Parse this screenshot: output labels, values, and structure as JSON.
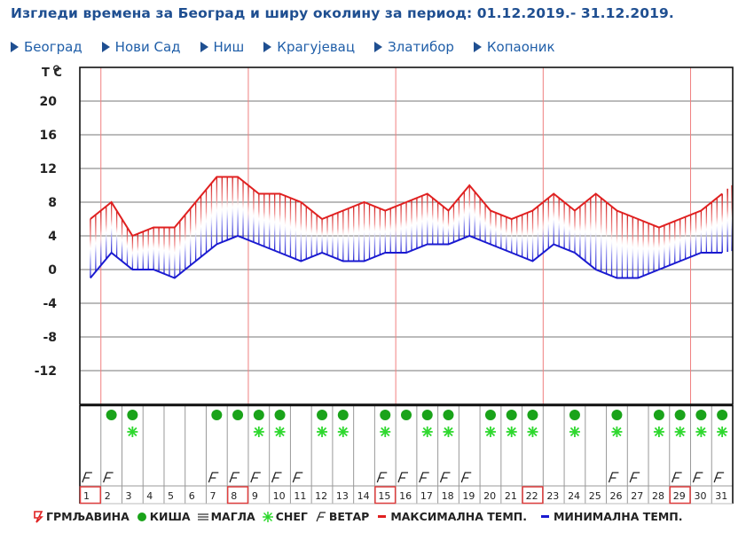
{
  "header": {
    "title": "Изгледи времена за Београд и ширу околину за период: 01.12.2019.- 31.12.2019."
  },
  "nav": {
    "items": [
      {
        "label": "Београд"
      },
      {
        "label": "Нови Сад"
      },
      {
        "label": "Ниш"
      },
      {
        "label": "Крагујевац"
      },
      {
        "label": "Златибор"
      },
      {
        "label": "Копаоник"
      }
    ]
  },
  "legend": {
    "thunder": "ГРМЉАВИНА",
    "rain": "КИША",
    "fog": "МАГЛА",
    "snow": "СНЕГ",
    "wind": "ВЕТАР",
    "max_temp": "МАКСИМАЛНА ТЕМП.",
    "min_temp": "МИНИМАЛНА ТЕМП."
  },
  "colors": {
    "max": "#e02020",
    "min": "#1a1ad0",
    "rain": "#1aa31a",
    "snow": "#2fd82f",
    "week_line": "#f08080",
    "title": "#1f4f91"
  },
  "chart_data": {
    "type": "area",
    "title": "Изгледи времена за Београд и ширу околину за период: 01.12.2019.- 31.12.2019.",
    "ylabel": "T °C",
    "xlabel": "",
    "ylim": [
      -16,
      24
    ],
    "yticks": [
      20,
      16,
      12,
      8,
      4,
      0,
      -4,
      -8,
      -12
    ],
    "grid": true,
    "x": [
      1,
      2,
      3,
      4,
      5,
      6,
      7,
      8,
      9,
      10,
      11,
      12,
      13,
      14,
      15,
      16,
      17,
      18,
      19,
      20,
      21,
      22,
      23,
      24,
      25,
      26,
      27,
      28,
      29,
      30,
      31
    ],
    "series": [
      {
        "name": "МАКСИМАЛНА ТЕМП.",
        "values": [
          6,
          8,
          4,
          5,
          5,
          8,
          11,
          11,
          9,
          9,
          8,
          6,
          7,
          8,
          7,
          8,
          9,
          7,
          10,
          7,
          6,
          7,
          9,
          7,
          9,
          7,
          6,
          5,
          6,
          7,
          9
        ]
      },
      {
        "name": "МИНИМАЛНА ТЕМП.",
        "values": [
          -1,
          2,
          0,
          0,
          -1,
          1,
          3,
          4,
          3,
          2,
          1,
          2,
          1,
          1,
          2,
          2,
          3,
          3,
          4,
          3,
          2,
          1,
          3,
          2,
          0,
          -1,
          -1,
          0,
          1,
          2,
          2
        ]
      }
    ],
    "highlighted_days": [
      1,
      8,
      15,
      22,
      29
    ],
    "rain_days": [
      2,
      3,
      7,
      8,
      9,
      10,
      12,
      13,
      15,
      16,
      17,
      18,
      20,
      21,
      22,
      24,
      26,
      28,
      29,
      30,
      31
    ],
    "snow_days": [
      3,
      9,
      10,
      12,
      13,
      15,
      17,
      18,
      20,
      21,
      22,
      24,
      26,
      28,
      29,
      30,
      31
    ],
    "wind_days": [
      1,
      2,
      7,
      8,
      9,
      10,
      11,
      15,
      16,
      17,
      18,
      19,
      26,
      27,
      29,
      30,
      31
    ],
    "fog_days": [],
    "thunder_days": []
  }
}
